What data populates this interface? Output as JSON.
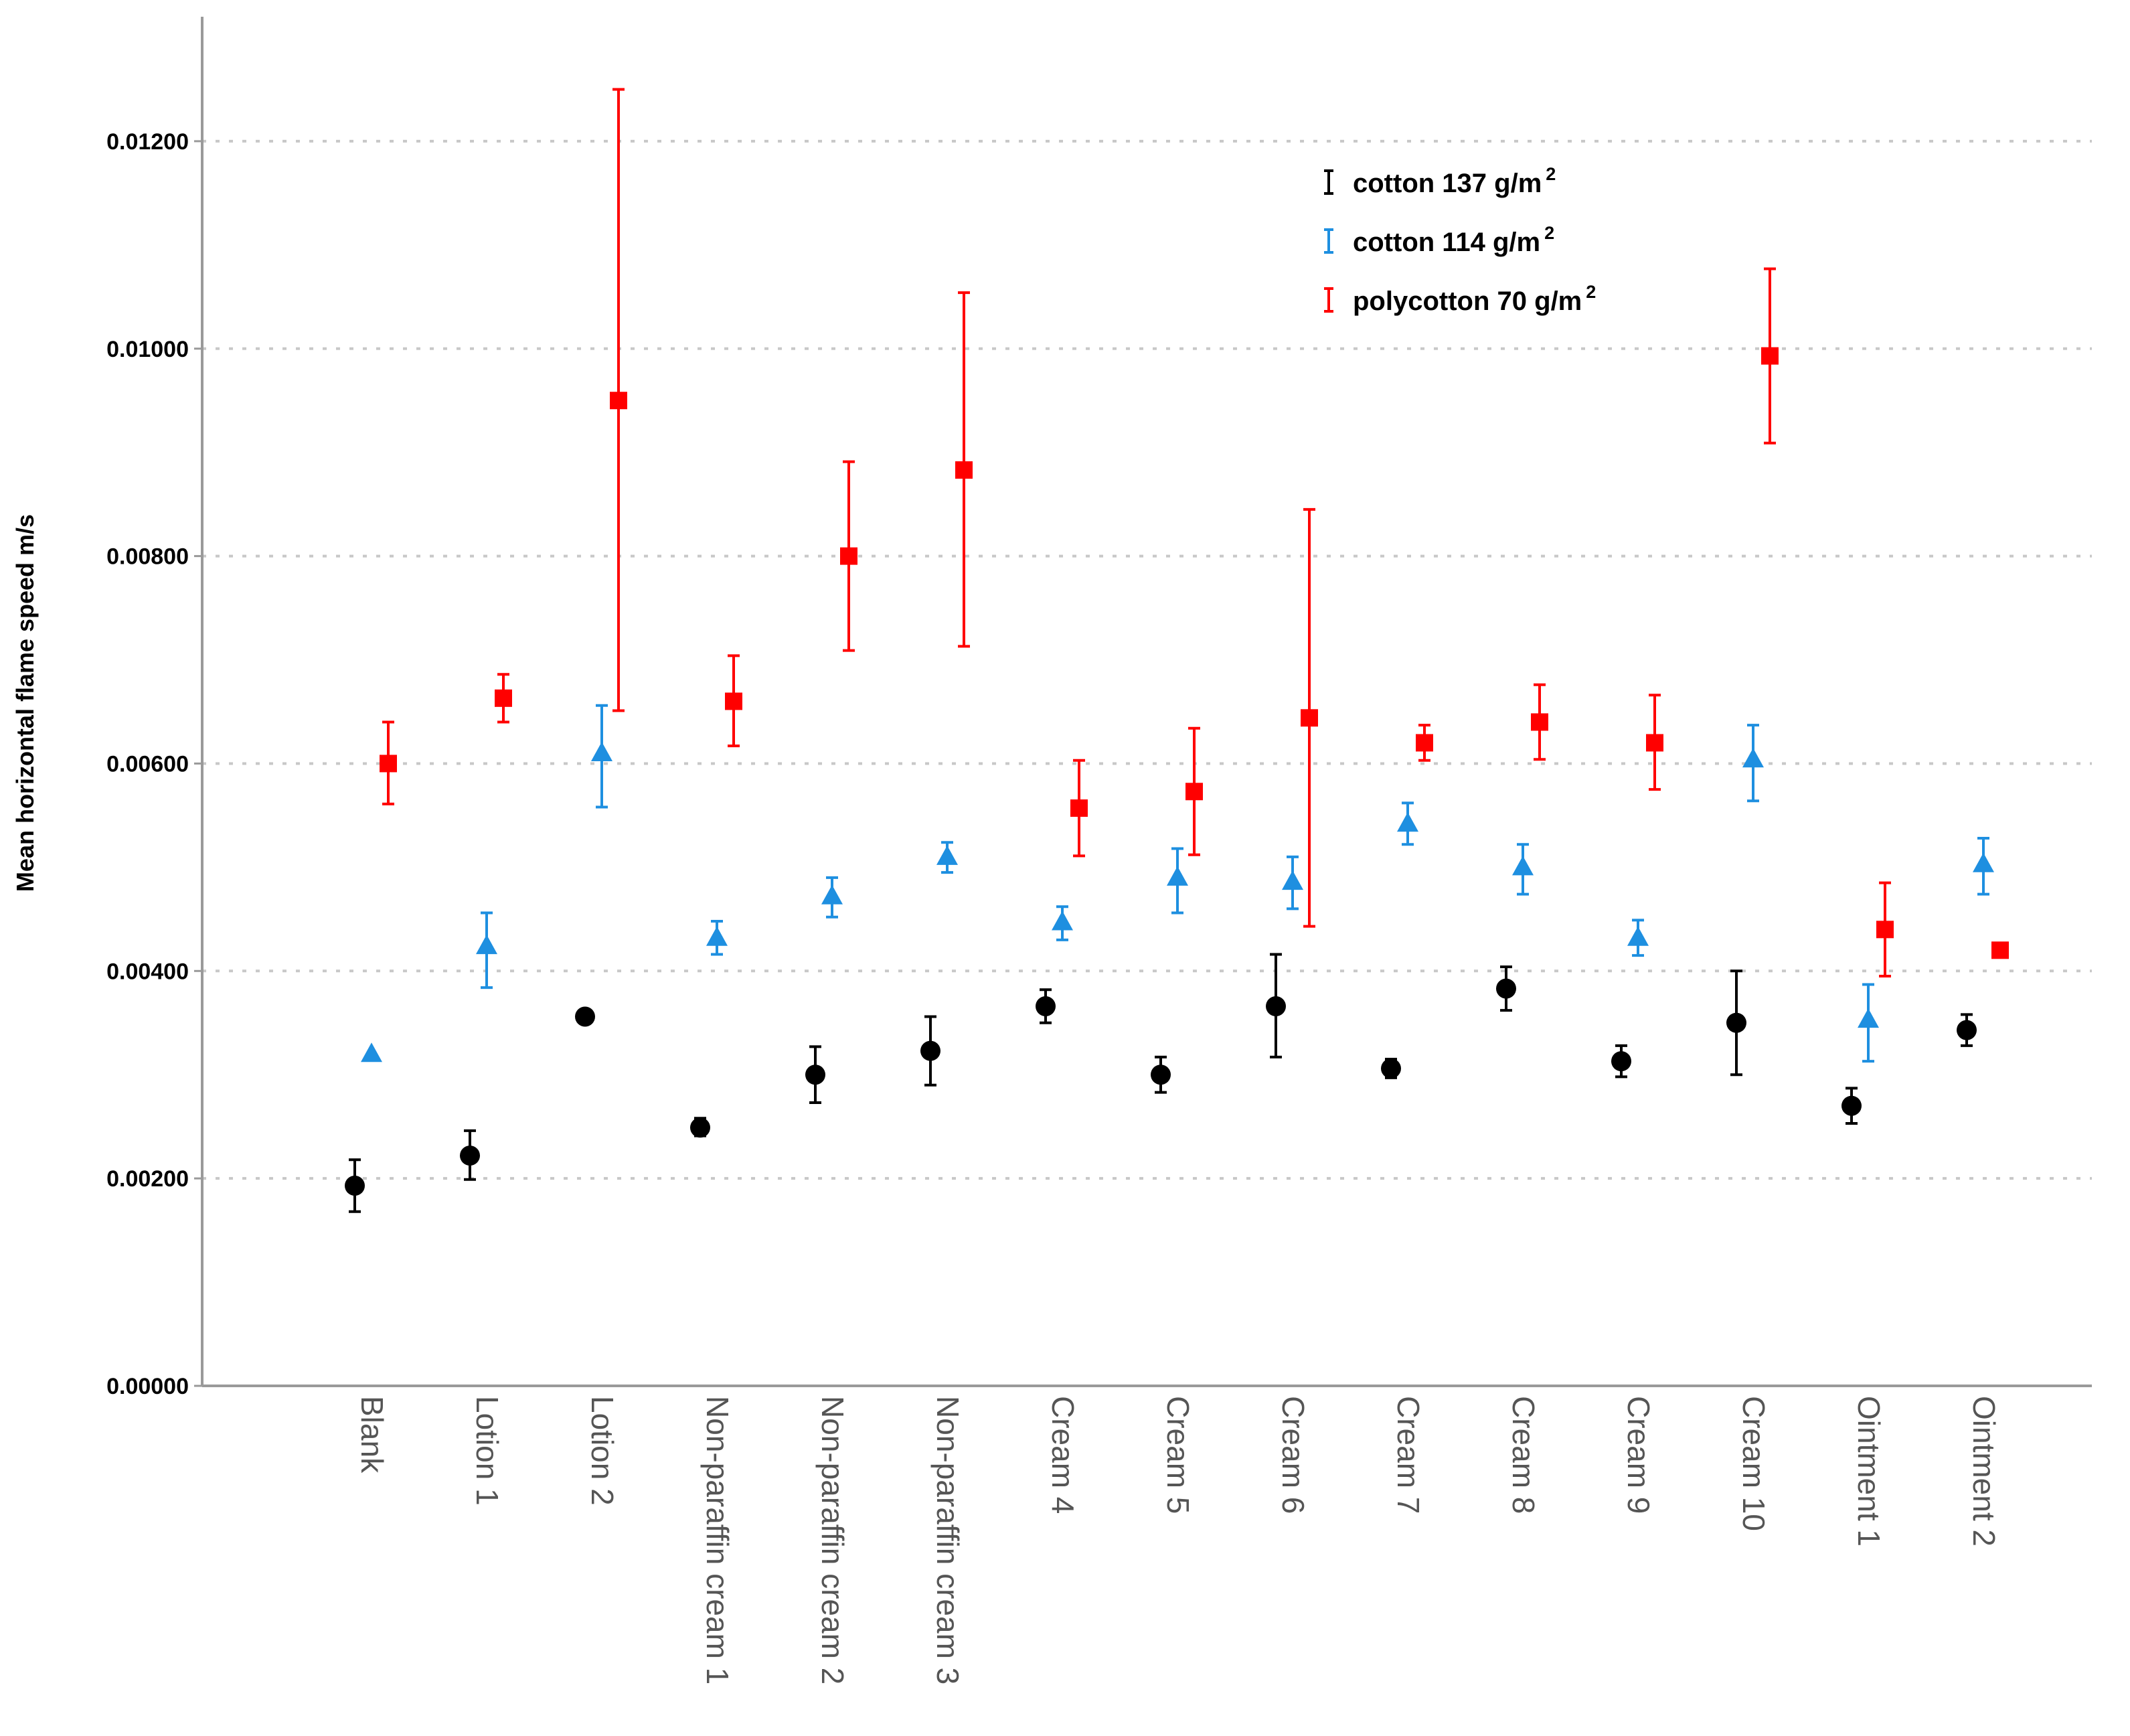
{
  "chart_data": {
    "type": "scatter",
    "title": "",
    "xlabel": "",
    "ylabel": "Mean horizontal flame speed m/s",
    "ylim": [
      0,
      0.0132
    ],
    "yticks": [
      "0.00000",
      "0.00200",
      "0.00400",
      "0.00600",
      "0.00800",
      "0.01000",
      "0.01200"
    ],
    "grid": "horizontal dotted",
    "legend_position": "top-right",
    "categories": [
      "Blank",
      "Lotion 1",
      "Lotion 2",
      "Non-paraffin cream 1",
      "Non-paraffin cream 2",
      "Non-paraffin cream 3",
      "Cream 4",
      "Cream 5",
      "Cream 6",
      "Cream 7",
      "Cream 8",
      "Cream 9",
      "Cream 10",
      "Ointment 1",
      "Ointment 2"
    ],
    "series": [
      {
        "name_main": "cotton 137 g/m",
        "name_sup": "2",
        "color": "#000000",
        "marker": "circle",
        "values": [
          0.00193,
          0.00222,
          0.00356,
          0.00249,
          0.003,
          0.00323,
          0.00366,
          0.003,
          0.00366,
          0.00306,
          0.00383,
          0.00313,
          0.0035,
          0.0027,
          0.00343
        ],
        "err_low": [
          0.00168,
          0.00199,
          null,
          0.00241,
          0.00273,
          0.0029,
          0.0035,
          0.00283,
          0.00317,
          0.00297,
          0.00362,
          0.00298,
          0.003,
          0.00253,
          0.00328
        ],
        "err_high": [
          0.00218,
          0.00246,
          null,
          0.00258,
          0.00327,
          0.00356,
          0.00382,
          0.00317,
          0.00416,
          0.00315,
          0.00404,
          0.00328,
          0.004,
          0.00287,
          0.00358
        ]
      },
      {
        "name_main": "cotton 114 g/m",
        "name_sup": "2",
        "color": "#1e8fe0",
        "marker": "triangle",
        "values": [
          0.0032,
          0.00424,
          0.0061,
          0.00432,
          0.00472,
          0.0051,
          0.00447,
          0.0049,
          0.00486,
          0.00542,
          0.005,
          0.00432,
          0.00604,
          0.00353,
          0.00503
        ],
        "err_low": [
          null,
          0.00384,
          0.00558,
          0.00416,
          0.00452,
          0.00495,
          0.0043,
          0.00456,
          0.0046,
          0.00522,
          0.00474,
          0.00415,
          0.00564,
          0.00313,
          0.00474
        ],
        "err_high": [
          null,
          0.00456,
          0.00656,
          0.00448,
          0.0049,
          0.00524,
          0.00462,
          0.00518,
          0.0051,
          0.00562,
          0.00522,
          0.00449,
          0.00637,
          0.00387,
          0.00528
        ]
      },
      {
        "name_main": "polycotton 70 g/m",
        "name_sup": "2",
        "color": "#ff0000",
        "marker": "square",
        "values": [
          0.006,
          0.00663,
          0.0095,
          0.0066,
          0.008,
          0.00883,
          0.00557,
          0.00573,
          0.00644,
          0.0062,
          0.0064,
          0.0062,
          0.00993,
          0.0044,
          0.0042
        ],
        "err_low": [
          0.00561,
          0.0064,
          0.00651,
          0.00617,
          0.00709,
          0.00713,
          0.00511,
          0.00512,
          0.00443,
          0.00603,
          0.00604,
          0.00575,
          0.00909,
          0.00395,
          0.00414
        ],
        "err_high": [
          0.0064,
          0.00686,
          0.0125,
          0.00704,
          0.00891,
          0.01054,
          0.00603,
          0.00634,
          0.00845,
          0.00637,
          0.00676,
          0.00666,
          0.01077,
          0.00485,
          0.00426
        ]
      }
    ]
  }
}
